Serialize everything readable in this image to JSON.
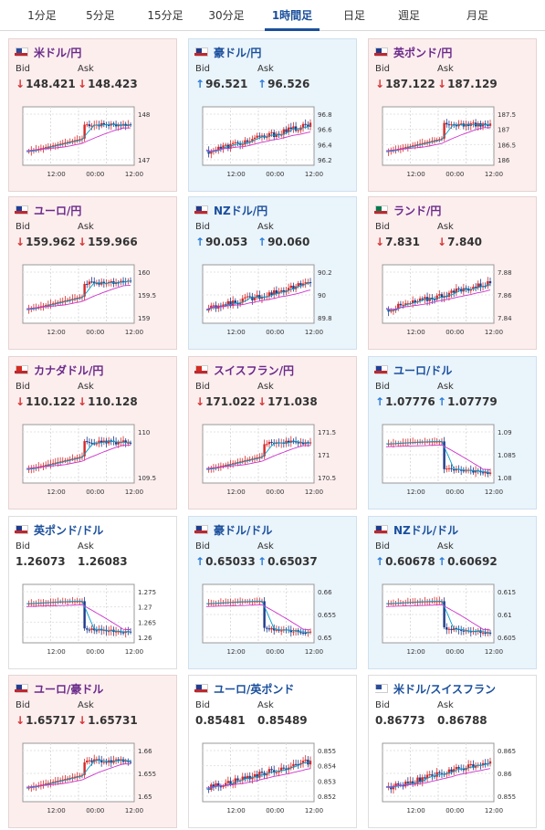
{
  "tabs": [
    "1分足",
    "5分足",
    "15分足",
    "30分足",
    "1時間足",
    "日足",
    "週足",
    "月足"
  ],
  "active_tab": 4,
  "labels": {
    "bid": "Bid",
    "ask": "Ask"
  },
  "colors": {
    "up": "#2a7bd8",
    "down": "#d63333",
    "ma1": "#00a0c8",
    "ma2": "#cc33cc",
    "candle_up": "#d62828",
    "candle_down": "#1f3a8a"
  },
  "x_ticks": [
    "12:00",
    "00:00",
    "12:00"
  ],
  "panels": [
    {
      "name": "米ドル/円",
      "theme": "pink",
      "flag": "us-jp",
      "bid_dir": "down",
      "bid": "148.421",
      "ask_dir": "down",
      "ask": "148.423",
      "y_ticks": [
        "148",
        "147"
      ]
    },
    {
      "name": "豪ドル/円",
      "theme": "blue",
      "flag": "au-jp",
      "bid_dir": "up",
      "bid": "96.521",
      "ask_dir": "up",
      "ask": "96.526",
      "y_ticks": [
        "96.8",
        "96.6",
        "96.4",
        "96.2"
      ]
    },
    {
      "name": "英ポンド/円",
      "theme": "pink",
      "flag": "gb-jp",
      "bid_dir": "down",
      "bid": "187.122",
      "ask_dir": "down",
      "ask": "187.129",
      "y_ticks": [
        "187.5",
        "187",
        "186.5",
        "186"
      ]
    },
    {
      "name": "ユーロ/円",
      "theme": "pink",
      "flag": "eu-jp",
      "bid_dir": "down",
      "bid": "159.962",
      "ask_dir": "down",
      "ask": "159.966",
      "y_ticks": [
        "160",
        "159.5",
        "159"
      ]
    },
    {
      "name": "NZドル/円",
      "theme": "blue",
      "flag": "nz-jp",
      "bid_dir": "up",
      "bid": "90.053",
      "ask_dir": "up",
      "ask": "90.060",
      "y_ticks": [
        "90.2",
        "90",
        "89.8"
      ]
    },
    {
      "name": "ランド/円",
      "theme": "pink",
      "flag": "za-jp",
      "bid_dir": "down",
      "bid": "7.831",
      "ask_dir": "down",
      "ask": "7.840",
      "y_ticks": [
        "7.88",
        "7.86",
        "7.84"
      ]
    },
    {
      "name": "カナダドル/円",
      "theme": "pink",
      "flag": "ca-jp",
      "bid_dir": "down",
      "bid": "110.122",
      "ask_dir": "down",
      "ask": "110.128",
      "y_ticks": [
        "110",
        "109.5"
      ]
    },
    {
      "name": "スイスフラン/円",
      "theme": "pink",
      "flag": "ch-jp",
      "bid_dir": "down",
      "bid": "171.022",
      "ask_dir": "down",
      "ask": "171.038",
      "y_ticks": [
        "171.5",
        "171",
        "170.5"
      ]
    },
    {
      "name": "ユーロ/ドル",
      "theme": "blue",
      "flag": "eu-us",
      "bid_dir": "up",
      "bid": "1.07776",
      "ask_dir": "up",
      "ask": "1.07779",
      "y_ticks": [
        "1.09",
        "1.085",
        "1.08"
      ]
    },
    {
      "name": "英ポンド/ドル",
      "theme": "white",
      "flag": "gb-us",
      "bid_dir": "",
      "bid": "1.26073",
      "ask_dir": "",
      "ask": "1.26083",
      "y_ticks": [
        "1.275",
        "1.27",
        "1.265",
        "1.26"
      ]
    },
    {
      "name": "豪ドル/ドル",
      "theme": "blue",
      "flag": "au-us",
      "bid_dir": "up",
      "bid": "0.65033",
      "ask_dir": "up",
      "ask": "0.65037",
      "y_ticks": [
        "0.66",
        "0.655",
        "0.65"
      ]
    },
    {
      "name": "NZドル/ドル",
      "theme": "blue",
      "flag": "nz-us",
      "bid_dir": "up",
      "bid": "0.60678",
      "ask_dir": "up",
      "ask": "0.60692",
      "y_ticks": [
        "0.615",
        "0.61",
        "0.605"
      ]
    },
    {
      "name": "ユーロ/豪ドル",
      "theme": "pink",
      "flag": "eu-au",
      "bid_dir": "down",
      "bid": "1.65717",
      "ask_dir": "down",
      "ask": "1.65731",
      "y_ticks": [
        "1.66",
        "1.655",
        "1.65"
      ]
    },
    {
      "name": "ユーロ/英ポンド",
      "theme": "white",
      "flag": "eu-gb",
      "bid_dir": "",
      "bid": "0.85481",
      "ask_dir": "",
      "ask": "0.85489",
      "y_ticks": [
        "0.855",
        "0.854",
        "0.853",
        "0.852"
      ]
    },
    {
      "name": "米ドル/スイスフラン",
      "theme": "white",
      "flag": "us-ch",
      "bid_dir": "",
      "bid": "0.86773",
      "ask_dir": "",
      "ask": "0.86788",
      "y_ticks": [
        "0.865",
        "0.86",
        "0.855"
      ]
    }
  ]
}
